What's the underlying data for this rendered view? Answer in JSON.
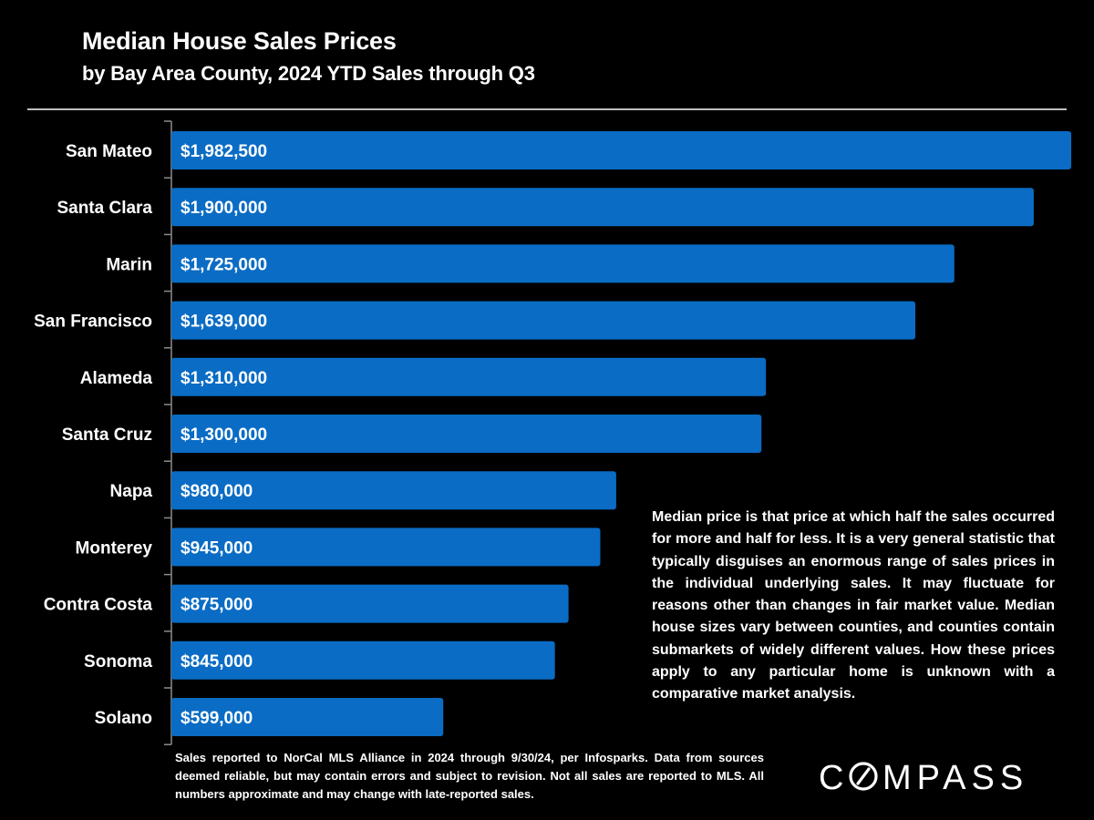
{
  "header": {
    "title": "Median House Sales Prices",
    "subtitle": "by Bay Area County, 2024 YTD Sales through Q3"
  },
  "chart_data": {
    "type": "bar",
    "orientation": "horizontal",
    "title": "Median House Sales Prices",
    "subtitle": "by Bay Area County, 2024 YTD Sales through Q3",
    "xlabel": "",
    "ylabel": "",
    "categories": [
      "San Mateo",
      "Santa Clara",
      "Marin",
      "San Francisco",
      "Alameda",
      "Santa Cruz",
      "Napa",
      "Monterey",
      "Contra Costa",
      "Sonoma",
      "Solano"
    ],
    "values": [
      1982500,
      1900000,
      1725000,
      1639000,
      1310000,
      1300000,
      980000,
      945000,
      875000,
      845000,
      599000
    ],
    "data_labels": [
      "$1,982,500",
      "$1,900,000",
      "$1,725,000",
      "$1,639,000",
      "$1,310,000",
      "$1,300,000",
      "$980,000",
      "$945,000",
      "$875,000",
      "$845,000",
      "$599,000"
    ],
    "xlim": [
      0,
      1982500
    ],
    "grid": false,
    "legend": "none",
    "bar_color": "#0a6cc4"
  },
  "note": "Median price is that price at which half the sales occurred for more and half for less. It is a very general statistic that typically disguises an enormous range of sales prices in the individual underlying sales. It may fluctuate for reasons other than changes in fair market value. Median house sizes vary between counties, and counties contain submarkets of widely different values. How these prices apply to any particular home is unknown with a comparative market analysis.",
  "source": "Sales reported to NorCal MLS Alliance in 2024 through 9/30/24, per Infosparks. Data from sources deemed reliable, but may contain errors and subject to revision. Not all sales are reported to MLS. All numbers approximate and may change with late-reported sales.",
  "brand": {
    "logo_text": "COMPASS"
  }
}
